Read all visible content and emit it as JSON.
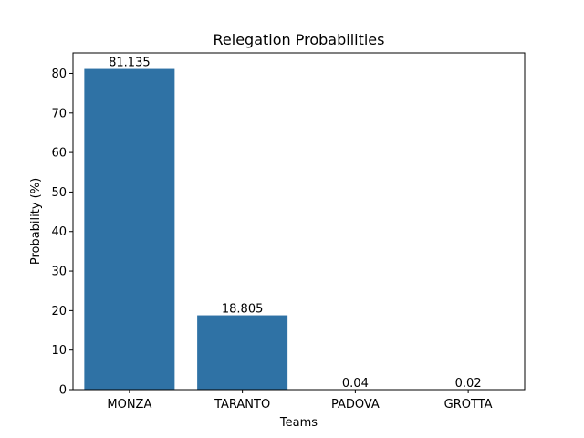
{
  "chart_data": {
    "type": "bar",
    "title": "Relegation Probabilities",
    "xlabel": "Teams",
    "ylabel": "Probability (%)",
    "categories": [
      "MONZA",
      "TARANTO",
      "PADOVA",
      "GROTTA"
    ],
    "values": [
      81.135,
      18.805,
      0.04,
      0.02
    ],
    "data_labels": [
      "81.135",
      "18.805",
      "0.04",
      "0.02"
    ],
    "ylim": [
      0,
      85.19
    ],
    "yticks": [
      0,
      10,
      20,
      30,
      40,
      50,
      60,
      70,
      80
    ],
    "grid": false,
    "bar_color": "#2f72a5"
  }
}
